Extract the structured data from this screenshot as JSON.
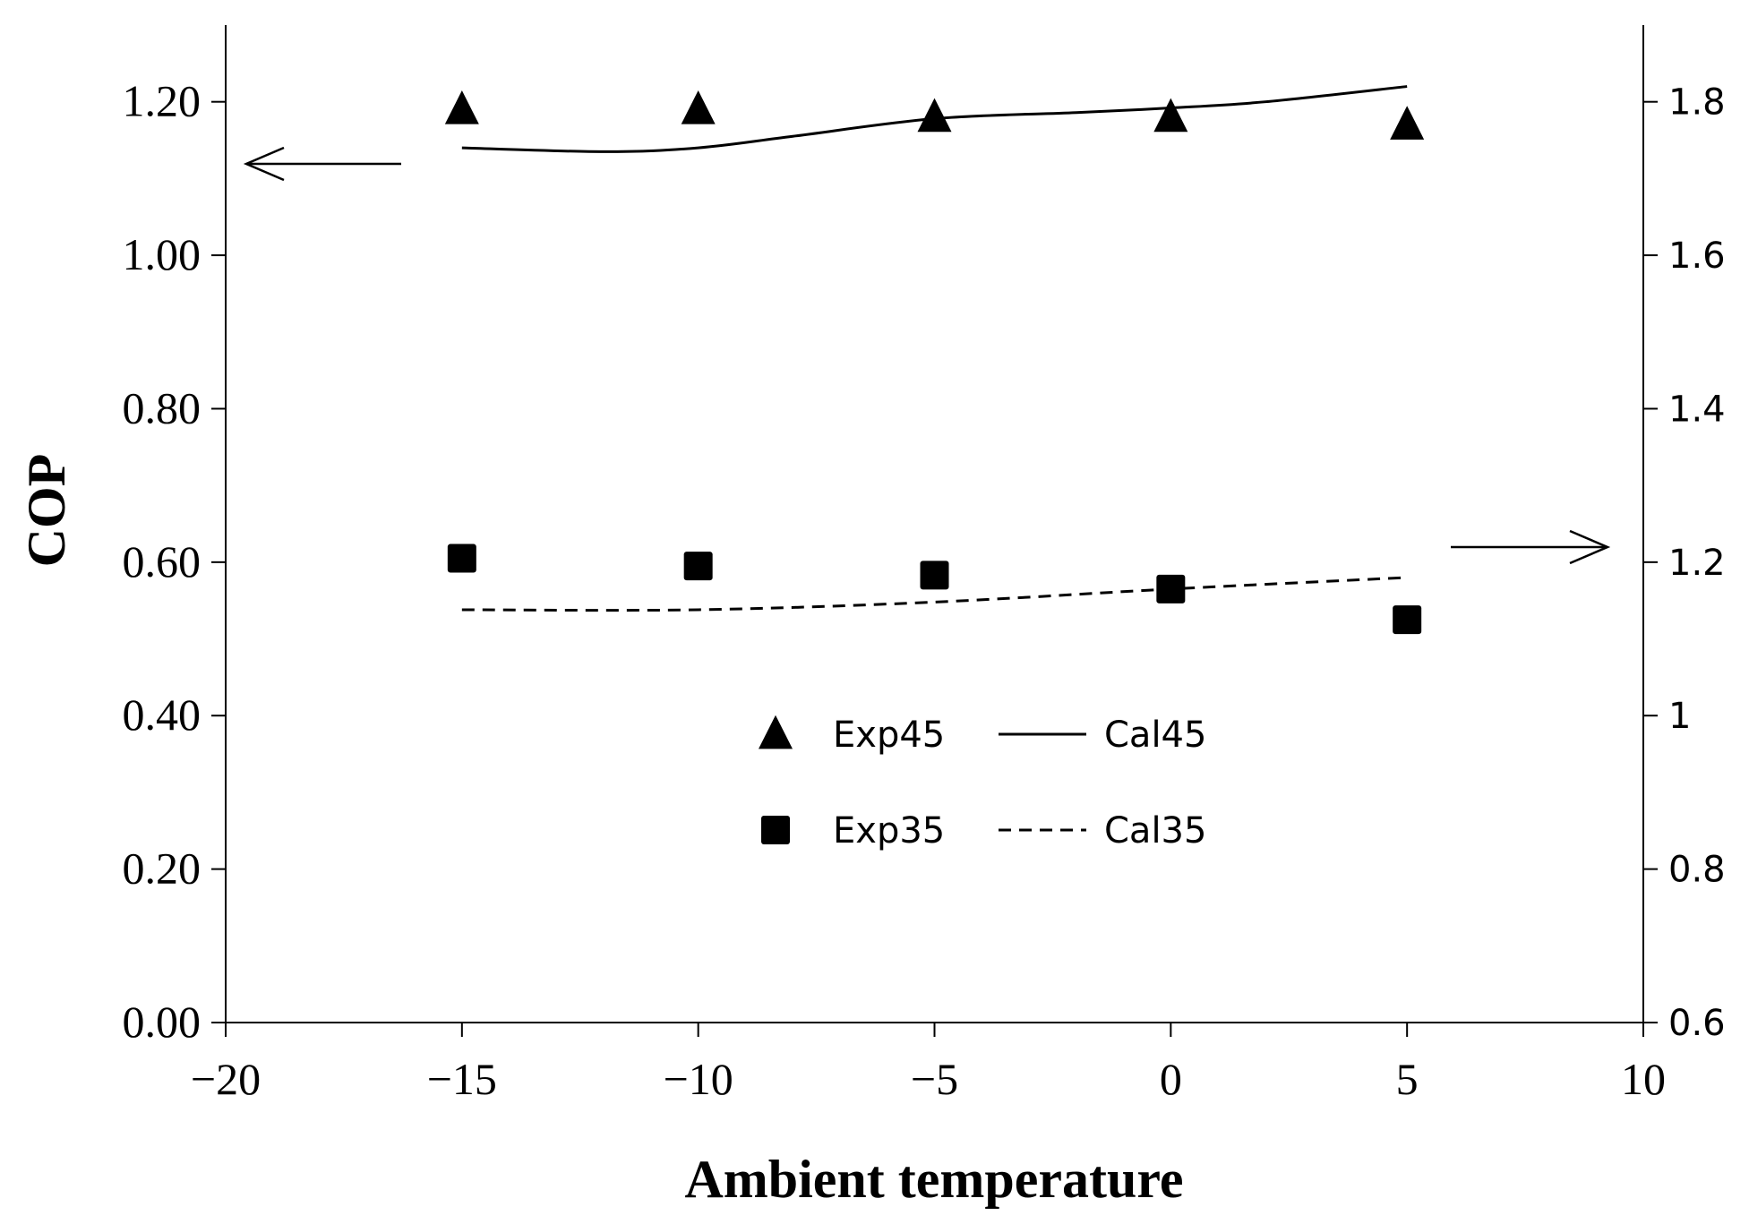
{
  "chart_data": {
    "type": "scatter",
    "title": "",
    "xlabel": "Ambient temperature",
    "ylabel": "COP",
    "xlim": [
      -20,
      10
    ],
    "ylim_left": [
      0,
      1.3
    ],
    "ylim_right": [
      0.6,
      1.9
    ],
    "x_ticks": [
      -20,
      -15,
      -10,
      -5,
      0,
      5,
      10
    ],
    "x_tick_labels": [
      "−20",
      "−15",
      "−10",
      "−5",
      "0",
      "5",
      "10"
    ],
    "left_ticks": [
      0,
      0.2,
      0.4,
      0.6,
      0.8,
      1.0,
      1.2
    ],
    "left_tick_labels": [
      "0.00",
      "0.20",
      "0.40",
      "0.60",
      "0.80",
      "1.00",
      "1.20"
    ],
    "right_ticks": [
      0.6,
      0.8,
      1.0,
      1.2,
      1.4,
      1.6,
      1.8
    ],
    "right_tick_labels": [
      "0.6",
      "0.8",
      "1",
      "1.2",
      "1.4",
      "1.6",
      "1.8"
    ],
    "grid": false,
    "legend_position": "center",
    "series": [
      {
        "name": "Exp45",
        "kind": "marker",
        "marker": "triangle",
        "axis": "left",
        "x": [
          -15,
          -10,
          -5,
          0,
          5
        ],
        "y": [
          1.19,
          1.19,
          1.18,
          1.18,
          1.17
        ]
      },
      {
        "name": "Cal45",
        "kind": "line",
        "style": "solid",
        "axis": "left",
        "x": [
          -15,
          -12,
          -10,
          -8,
          -5,
          -2,
          0,
          2,
          5
        ],
        "y": [
          1.14,
          1.135,
          1.14,
          1.155,
          1.178,
          1.186,
          1.192,
          1.2,
          1.22
        ]
      },
      {
        "name": "Exp35",
        "kind": "marker",
        "marker": "square",
        "axis": "right",
        "x": [
          -15,
          -10,
          -5,
          0,
          5
        ],
        "y": [
          1.205,
          1.195,
          1.183,
          1.165,
          1.125
        ]
      },
      {
        "name": "Cal35",
        "kind": "line",
        "style": "dashed",
        "axis": "right",
        "x": [
          -15,
          -10,
          -5,
          0,
          5
        ],
        "y": [
          1.138,
          1.138,
          1.148,
          1.165,
          1.18
        ]
      }
    ],
    "annotations": [
      {
        "type": "arrow",
        "direction": "left",
        "points_to": "left axis (Exp45/Cal45)"
      },
      {
        "type": "arrow",
        "direction": "right",
        "points_to": "right axis (Exp35/Cal35)"
      }
    ],
    "colors": {
      "ink": "#000000",
      "background": "#ffffff"
    }
  }
}
